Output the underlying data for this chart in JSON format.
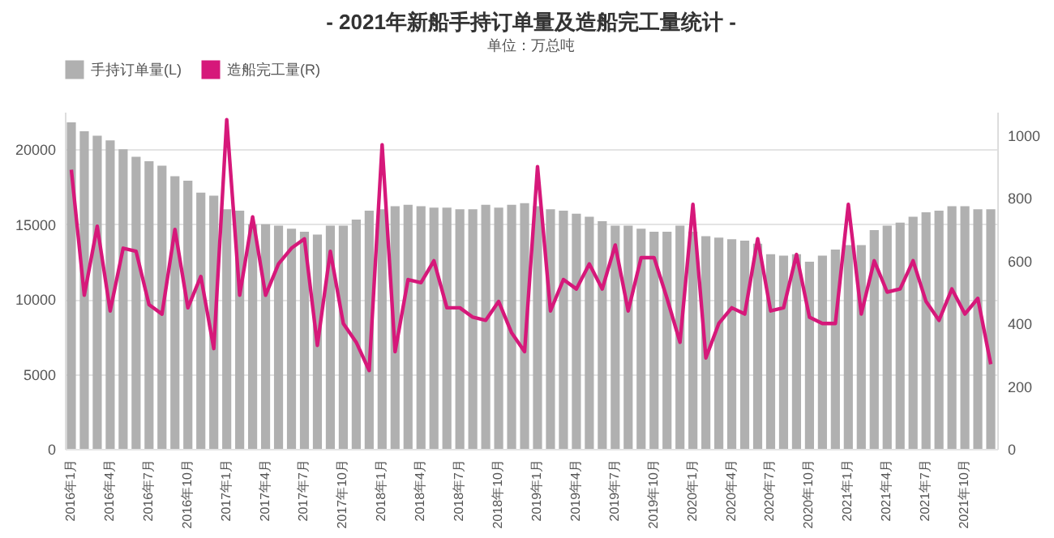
{
  "chart_data": {
    "type": "bar",
    "title": "- 2021年新船手持订单量及造船完工量统计 -",
    "subtitle": "单位：万总吨",
    "categories": [
      "2016年1月",
      null,
      null,
      "2016年4月",
      null,
      null,
      "2016年7月",
      null,
      null,
      "2016年10月",
      null,
      null,
      "2017年1月",
      null,
      null,
      "2017年4月",
      null,
      null,
      "2017年7月",
      null,
      null,
      "2017年10月",
      null,
      null,
      "2018年1月",
      null,
      null,
      "2018年4月",
      null,
      null,
      "2018年7月",
      null,
      null,
      "2018年10月",
      null,
      null,
      "2019年1月",
      null,
      null,
      "2019年4月",
      null,
      null,
      "2019年7月",
      null,
      null,
      "2019年10月",
      null,
      null,
      "2020年1月",
      null,
      null,
      "2020年4月",
      null,
      null,
      "2020年7月",
      null,
      null,
      "2020年10月",
      null,
      null,
      "2021年1月",
      null,
      null,
      "2021年4月",
      null,
      null,
      "2021年7月",
      null,
      null,
      "2021年10月",
      null,
      null
    ],
    "series": [
      {
        "name": "手持订单量(L)",
        "color": "#b0b0b0",
        "values": [
          21800,
          21200,
          20900,
          20600,
          20000,
          19500,
          19200,
          18900,
          18200,
          17900,
          17100,
          16900,
          16000,
          15900,
          15000,
          15000,
          14900,
          14700,
          14500,
          14300,
          14900,
          14900,
          15300,
          15900,
          16000,
          16200,
          16300,
          16200,
          16100,
          16100,
          16000,
          16000,
          16300,
          16100,
          16300,
          16400,
          16200,
          16000,
          15900,
          15700,
          15500,
          15200,
          14900,
          14900,
          14700,
          14500,
          14500,
          14900,
          14500,
          14200,
          14100,
          14000,
          13900,
          13700,
          13000,
          12900,
          13000,
          12500,
          12900,
          13300,
          13600,
          13600,
          14600,
          14900,
          15100,
          15500,
          15800,
          15900,
          16200,
          16200,
          16000,
          16000
        ]
      },
      {
        "name": "造船完工量(R)",
        "type": "line",
        "axis": "y2",
        "color": "#d6187a",
        "values": [
          890,
          490,
          710,
          440,
          640,
          630,
          460,
          430,
          700,
          450,
          550,
          320,
          1050,
          490,
          740,
          490,
          590,
          640,
          670,
          330,
          630,
          400,
          340,
          250,
          970,
          310,
          540,
          530,
          600,
          450,
          450,
          420,
          410,
          470,
          370,
          310,
          900,
          440,
          540,
          510,
          590,
          510,
          650,
          440,
          610,
          610,
          480,
          340,
          780,
          290,
          400,
          450,
          430,
          670,
          440,
          450,
          620,
          420,
          400,
          400,
          780,
          430,
          600,
          500,
          510,
          600,
          470,
          410,
          510,
          430,
          480,
          270
        ]
      }
    ],
    "ylim": [
      0,
      22500
    ],
    "yticks": [
      0,
      5000,
      10000,
      15000,
      20000
    ],
    "y2lim": [
      0,
      1075
    ],
    "y2ticks": [
      0,
      200,
      400,
      600,
      800,
      1000
    ],
    "grid": "y",
    "legend": "top"
  }
}
